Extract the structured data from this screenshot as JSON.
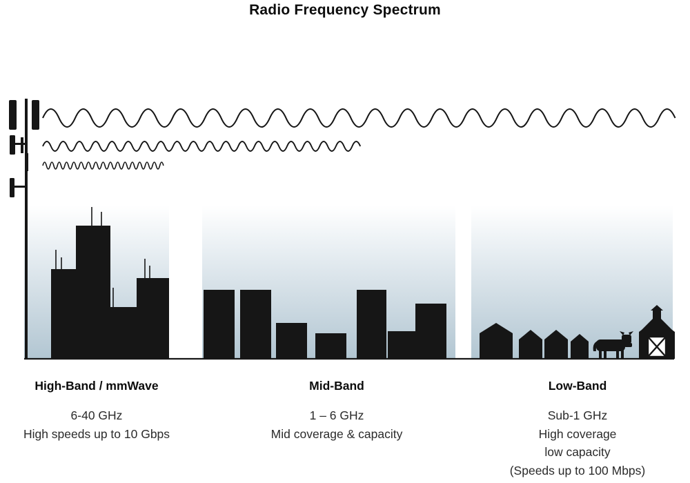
{
  "title": "Radio Frequency Spectrum",
  "bands": [
    {
      "name": "High-Band / mmWave",
      "lines": [
        "6-40 GHz",
        "High speeds up to 10 Gbps"
      ]
    },
    {
      "name": "Mid-Band",
      "lines": [
        "1 – 6 GHz",
        "Mid coverage & capacity"
      ]
    },
    {
      "name": "Low-Band",
      "lines": [
        "Sub-1 GHz",
        "High coverage",
        "low capacity",
        "(Speeds up to 100 Mbps)"
      ]
    }
  ],
  "scene": {
    "tower_icon": "cell-tower-icon",
    "waves": [
      {
        "name": "low-band-wave",
        "wavelength": "long",
        "reach": "full width"
      },
      {
        "name": "mid-band-wave",
        "wavelength": "medium",
        "reach": "half width"
      },
      {
        "name": "high-band-wave",
        "wavelength": "short",
        "reach": "short"
      }
    ],
    "districts": [
      "city-skyscrapers",
      "mid-rise-buildings",
      "rural-houses-cow-barn"
    ]
  },
  "colors": {
    "silhouette": "#161616",
    "sky_top": "#ffffff",
    "sky_mid": "#e9eff3",
    "sky_bottom": "#b2c6d2",
    "text": "#2b2b2b"
  }
}
